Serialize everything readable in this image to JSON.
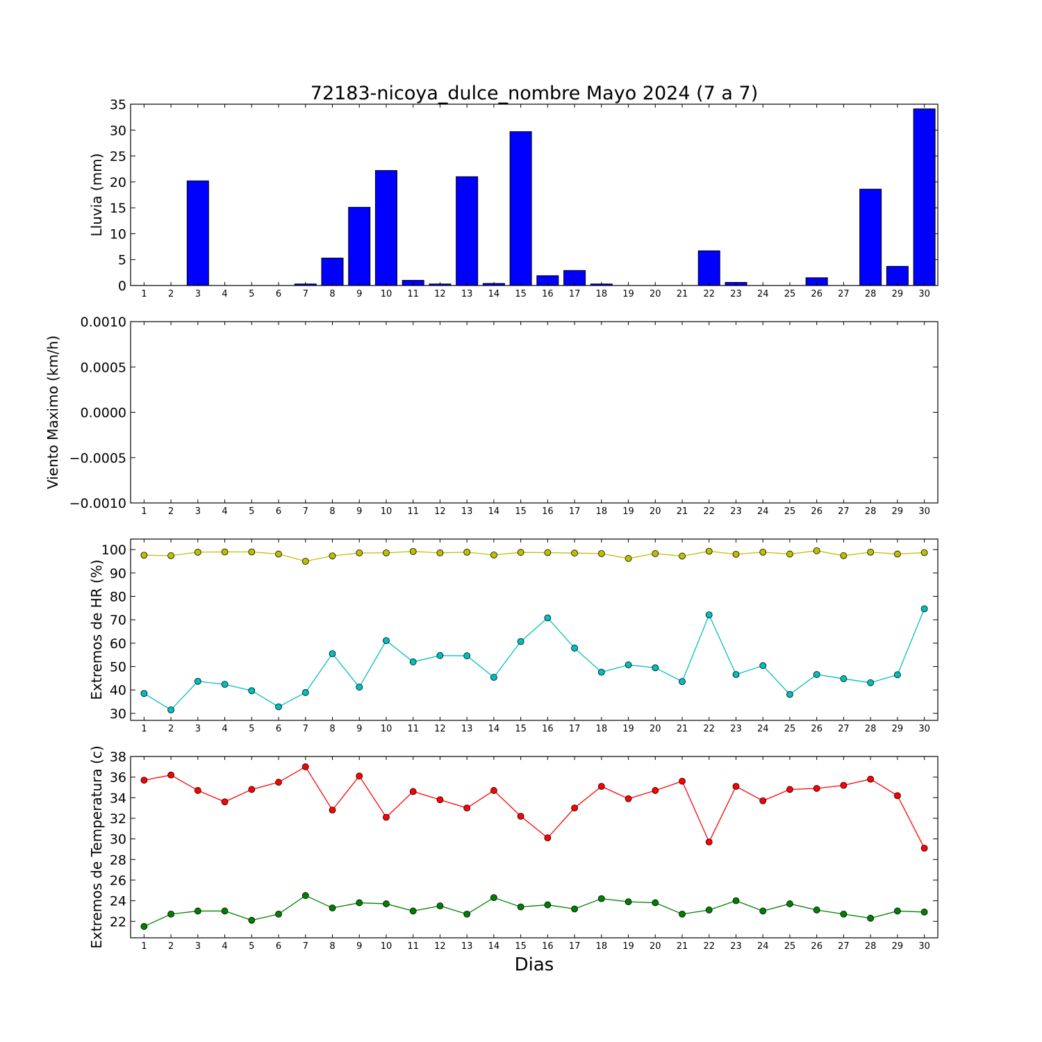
{
  "figure": {
    "title": "72183-nicoya_dulce_nombre Mayo 2024  (7 a 7)",
    "xlabel": "Dias"
  },
  "chart_data": [
    {
      "type": "bar",
      "ylabel": "Lluvia (mm)",
      "ylim": [
        0,
        35
      ],
      "yticks": [
        0,
        5,
        10,
        15,
        20,
        25,
        30,
        35
      ],
      "ytick_labels": [
        "0",
        "5",
        "10",
        "15",
        "20",
        "25",
        "30",
        "35"
      ],
      "x": [
        1,
        2,
        3,
        4,
        5,
        6,
        7,
        8,
        9,
        10,
        11,
        12,
        13,
        14,
        15,
        16,
        17,
        18,
        19,
        20,
        21,
        22,
        23,
        24,
        25,
        26,
        27,
        28,
        29,
        30
      ],
      "series": [
        {
          "color": "#0000ff",
          "values": [
            0,
            0,
            20.2,
            0,
            0,
            0,
            0.3,
            5.3,
            15.1,
            22.2,
            1.0,
            0.3,
            21.0,
            0.4,
            29.7,
            1.9,
            2.9,
            0.3,
            0,
            0,
            0,
            6.7,
            0.6,
            0,
            0,
            1.5,
            0,
            18.6,
            3.7,
            34.1
          ]
        }
      ]
    },
    {
      "type": "line",
      "ylabel": "Viento Maximo (km/h)",
      "ylim": [
        -0.001,
        0.001
      ],
      "yticks": [
        -0.001,
        -0.0005,
        0,
        0.0005,
        0.001
      ],
      "ytick_labels": [
        "−0.0010",
        "−0.0005",
        "0.0000",
        "0.0005",
        "0.0010"
      ],
      "x": [
        1,
        2,
        3,
        4,
        5,
        6,
        7,
        8,
        9,
        10,
        11,
        12,
        13,
        14,
        15,
        16,
        17,
        18,
        19,
        20,
        21,
        22,
        23,
        24,
        25,
        26,
        27,
        28,
        29,
        30
      ],
      "series": []
    },
    {
      "type": "line",
      "ylabel": "Extremos de HR (%)",
      "ylim": [
        27,
        104.5
      ],
      "yticks": [
        30,
        40,
        50,
        60,
        70,
        80,
        90,
        100
      ],
      "ytick_labels": [
        "30",
        "40",
        "50",
        "60",
        "70",
        "80",
        "90",
        "100"
      ],
      "x": [
        1,
        2,
        3,
        4,
        5,
        6,
        7,
        8,
        9,
        10,
        11,
        12,
        13,
        14,
        15,
        16,
        17,
        18,
        19,
        20,
        21,
        22,
        23,
        24,
        25,
        26,
        27,
        28,
        29,
        30
      ],
      "series": [
        {
          "color": "#bfbf00",
          "values": [
            97.6,
            97.4,
            98.9,
            99.0,
            99.0,
            98.1,
            95.0,
            97.3,
            98.6,
            98.6,
            99.2,
            98.6,
            98.9,
            97.7,
            98.8,
            98.7,
            98.5,
            98.3,
            96.2,
            98.3,
            97.2,
            99.3,
            98.0,
            98.9,
            98.1,
            99.5,
            97.4,
            98.9,
            98.1,
            98.7
          ]
        },
        {
          "color": "#00bfbf",
          "values": [
            38.5,
            31.5,
            43.7,
            42.4,
            39.7,
            32.8,
            38.9,
            55.5,
            41.2,
            61.1,
            52.0,
            54.7,
            54.6,
            45.4,
            60.7,
            70.8,
            57.9,
            47.6,
            50.7,
            49.5,
            43.6,
            72.1,
            46.6,
            50.4,
            38.1,
            46.6,
            44.8,
            43.1,
            46.5,
            74.7
          ]
        }
      ]
    },
    {
      "type": "line",
      "ylabel": "Extremos de Temperatura (c)",
      "ylim": [
        20.4,
        38
      ],
      "yticks": [
        22,
        24,
        26,
        28,
        30,
        32,
        34,
        36,
        38
      ],
      "ytick_labels": [
        "22",
        "24",
        "26",
        "28",
        "30",
        "32",
        "34",
        "36",
        "38"
      ],
      "x": [
        1,
        2,
        3,
        4,
        5,
        6,
        7,
        8,
        9,
        10,
        11,
        12,
        13,
        14,
        15,
        16,
        17,
        18,
        19,
        20,
        21,
        22,
        23,
        24,
        25,
        26,
        27,
        28,
        29,
        30
      ],
      "series": [
        {
          "color": "#ff0000",
          "values": [
            35.7,
            36.2,
            34.7,
            33.6,
            34.8,
            35.5,
            37.0,
            32.8,
            36.1,
            32.1,
            34.6,
            33.8,
            33.0,
            34.7,
            32.2,
            30.1,
            33.0,
            35.1,
            33.9,
            34.7,
            35.6,
            29.7,
            35.1,
            33.7,
            34.8,
            34.9,
            35.2,
            35.8,
            34.2,
            29.1
          ]
        },
        {
          "color": "#008000",
          "values": [
            21.5,
            22.7,
            23.0,
            23.0,
            22.1,
            22.7,
            24.5,
            23.3,
            23.8,
            23.7,
            23.0,
            23.5,
            22.7,
            24.3,
            23.4,
            23.6,
            23.2,
            24.2,
            23.9,
            23.8,
            22.7,
            23.1,
            24.0,
            23.0,
            23.7,
            23.1,
            22.7,
            22.3,
            23.0,
            22.9
          ]
        }
      ]
    }
  ]
}
